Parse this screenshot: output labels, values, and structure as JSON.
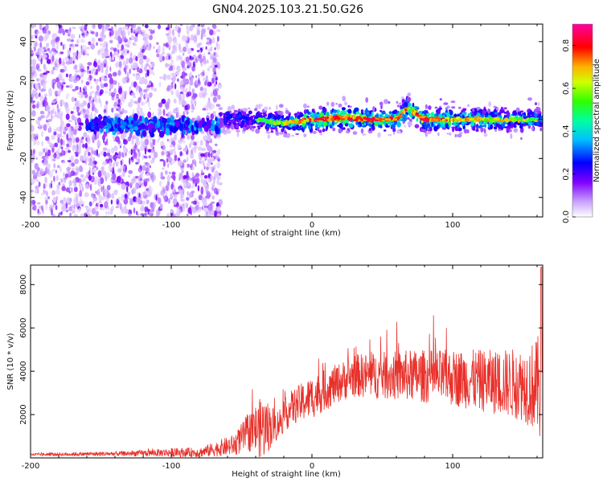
{
  "title": "GN04.2025.103.21.50.G26",
  "chart_data": [
    {
      "type": "heatmap",
      "xlabel": "Height of straight line (km)",
      "ylabel": "Frequency (Hz)",
      "xlim": [
        -200,
        164
      ],
      "ylim": [
        -50,
        49
      ],
      "x_ticks": [
        -200,
        -100,
        0,
        100
      ],
      "y_ticks": [
        40,
        20,
        0,
        -20,
        -40
      ],
      "x_tick_labels": [
        "-200",
        "-100",
        "0",
        "100"
      ],
      "y_tick_labels": [
        "40",
        "20",
        "0",
        "-20",
        "-40"
      ],
      "colorbar": {
        "label": "Normalized spectral amplitude",
        "range": [
          0,
          0.9
        ],
        "ticks": [
          0.0,
          0.2,
          0.4,
          0.6,
          0.8
        ],
        "tick_labels": [
          "0.0",
          "0.2",
          "0.4",
          "0.6",
          "0.8"
        ],
        "colormap": "rainbow"
      },
      "noise_region_km": [
        -200,
        -65
      ],
      "ridge": {
        "x": [
          -65,
          -40,
          -20,
          0,
          20,
          40,
          60,
          68,
          80,
          100,
          120,
          140,
          164
        ],
        "center_hz": [
          0,
          0,
          -2,
          0,
          1,
          0,
          0,
          6,
          0,
          0,
          0,
          0,
          0
        ],
        "amplitude": [
          0.25,
          0.3,
          0.4,
          0.55,
          0.6,
          0.55,
          0.55,
          0.5,
          0.6,
          0.5,
          0.45,
          0.4,
          0.35
        ]
      }
    },
    {
      "type": "line",
      "xlabel": "Height of straight line (km)",
      "ylabel": "SNR (10 * v/v)",
      "xlim": [
        -200,
        164
      ],
      "ylim": [
        0,
        8900
      ],
      "x_ticks": [
        -200,
        -100,
        0,
        100
      ],
      "y_ticks": [
        2000,
        4000,
        6000,
        8000
      ],
      "x_tick_labels": [
        "-200",
        "-100",
        "0",
        "100"
      ],
      "y_tick_labels": [
        "2000",
        "4000",
        "6000",
        "8000"
      ],
      "color": "#e8302a",
      "envelope": {
        "x": [
          -200,
          -130,
          -100,
          -80,
          -55,
          -45,
          -35,
          -25,
          -15,
          0,
          20,
          30,
          50,
          70,
          100,
          130,
          150,
          160,
          164
        ],
        "base": [
          150,
          200,
          250,
          250,
          600,
          1200,
          1400,
          1500,
          2300,
          2800,
          3500,
          3800,
          3800,
          3800,
          3700,
          3500,
          3400,
          3300,
          3300
        ],
        "amp": [
          60,
          120,
          200,
          220,
          500,
          900,
          1500,
          700,
          800,
          1000,
          900,
          1000,
          1100,
          1200,
          1300,
          1500,
          1700,
          2200,
          3200
        ]
      },
      "peak": {
        "x": 163,
        "y": 8800
      }
    }
  ]
}
